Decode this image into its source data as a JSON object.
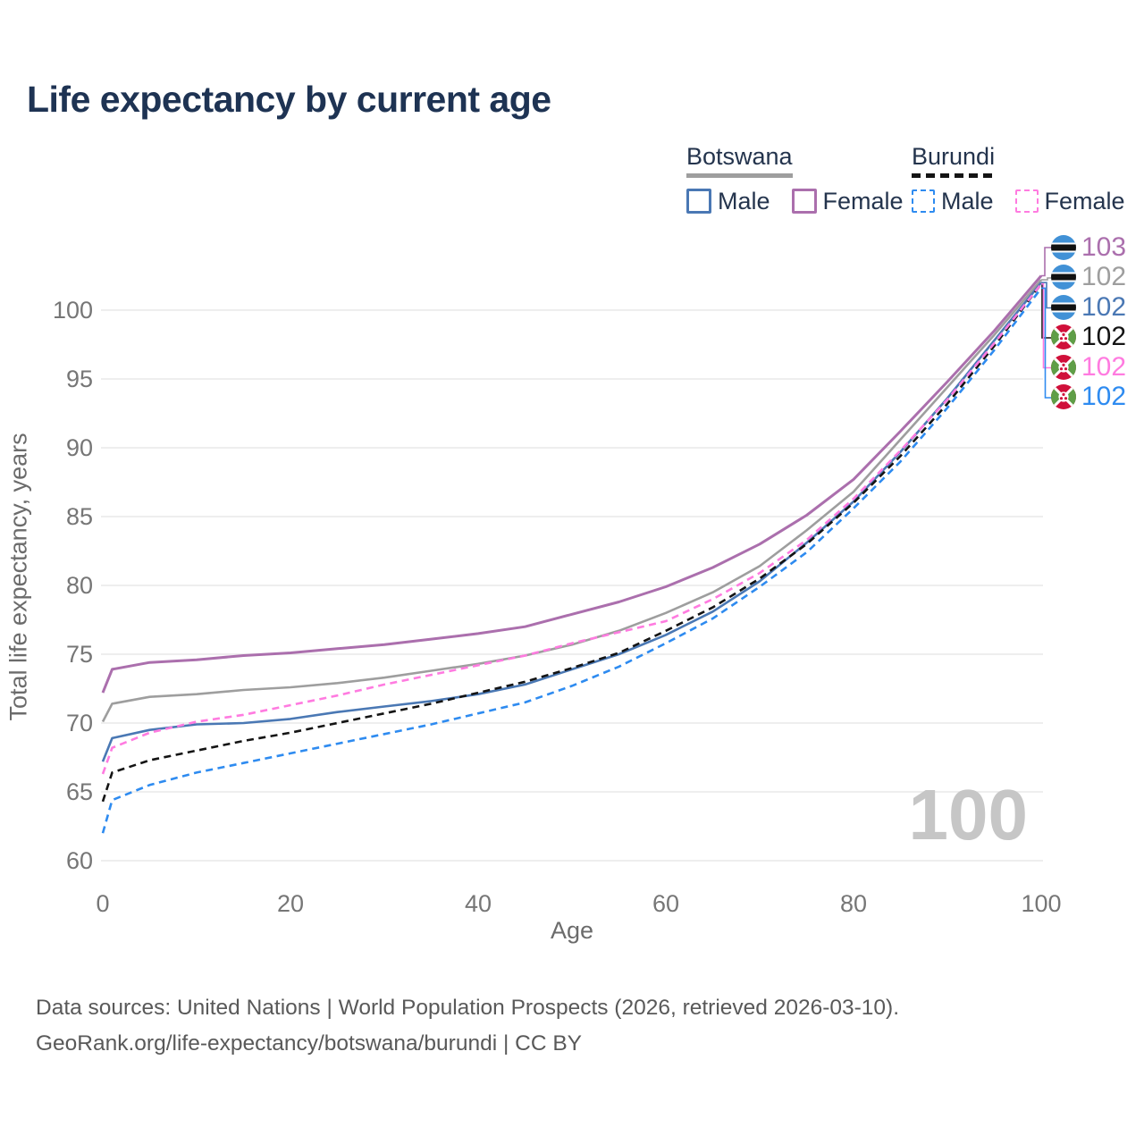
{
  "title": "Life expectancy by current age",
  "legend": {
    "groups": [
      {
        "country": "Botswana",
        "line_style": "solid",
        "underline_color": "#9e9e9e",
        "items": [
          {
            "label": "Male",
            "color": "#4a78b4",
            "dashed": false
          },
          {
            "label": "Female",
            "color": "#ab6fad",
            "dashed": false
          }
        ]
      },
      {
        "country": "Burundi",
        "line_style": "dashed",
        "underline_color": "#141414",
        "items": [
          {
            "label": "Male",
            "color": "#2e8bf0",
            "dashed": true
          },
          {
            "label": "Female",
            "color": "#ff7be0",
            "dashed": true
          }
        ]
      }
    ]
  },
  "watermark": "100",
  "footer": {
    "data_sources_line": "Data sources: United Nations | World Population Prospects (2026, retrieved 2026-03-10).",
    "attribution_line": "GeoRank.org/life-expectancy/botswana/burundi | CC BY"
  },
  "chart_data": {
    "type": "line",
    "title": "Life expectancy by current age",
    "xlabel": "Age",
    "ylabel": "Total life expectancy, years",
    "xlim": [
      0,
      100
    ],
    "ylim": [
      60,
      103.5
    ],
    "x_ticks": [
      0,
      20,
      40,
      60,
      80,
      100
    ],
    "y_ticks": [
      60,
      65,
      70,
      75,
      80,
      85,
      90,
      95,
      100
    ],
    "grid": "horizontal",
    "legend_position": "top-right",
    "x": [
      0,
      1,
      5,
      10,
      15,
      20,
      25,
      30,
      35,
      40,
      45,
      50,
      55,
      60,
      65,
      70,
      75,
      80,
      85,
      90,
      95,
      100
    ],
    "series": [
      {
        "name": "Botswana Female",
        "country": "Botswana",
        "sex": "Female",
        "line": "solid",
        "color": "#ab6fad",
        "flag": "botswana",
        "end_label": "103",
        "values": [
          72.2,
          73.9,
          74.4,
          74.6,
          74.9,
          75.1,
          75.4,
          75.7,
          76.1,
          76.5,
          77.0,
          77.9,
          78.8,
          79.9,
          81.3,
          83.0,
          85.1,
          87.7,
          91.2,
          94.8,
          98.5,
          102.5
        ]
      },
      {
        "name": "Botswana Both sexes",
        "country": "Botswana",
        "sex": "All",
        "line": "solid",
        "color": "#9e9e9e",
        "flag": "botswana",
        "end_label": "102",
        "values": [
          70.1,
          71.4,
          71.9,
          72.1,
          72.4,
          72.6,
          72.9,
          73.3,
          73.8,
          74.3,
          74.9,
          75.7,
          76.7,
          78.0,
          79.5,
          81.4,
          84.0,
          86.8,
          90.6,
          94.4,
          98.2,
          102.2
        ]
      },
      {
        "name": "Botswana Male",
        "country": "Botswana",
        "sex": "Male",
        "line": "solid",
        "color": "#4a78b4",
        "flag": "botswana",
        "end_label": "102",
        "values": [
          67.2,
          68.9,
          69.5,
          69.9,
          70.0,
          70.3,
          70.8,
          71.2,
          71.6,
          72.1,
          72.8,
          73.9,
          75.0,
          76.4,
          78.1,
          80.3,
          83.1,
          86.1,
          89.7,
          93.6,
          97.8,
          102.0
        ]
      },
      {
        "name": "Burundi Both sexes",
        "country": "Burundi",
        "sex": "All",
        "line": "dashed",
        "color": "#141414",
        "flag": "burundi",
        "end_label": "102",
        "values": [
          64.3,
          66.4,
          67.3,
          68.0,
          68.7,
          69.3,
          70.0,
          70.7,
          71.4,
          72.2,
          73.0,
          74.0,
          75.1,
          76.7,
          78.4,
          80.5,
          83.0,
          86.0,
          89.4,
          93.2,
          97.4,
          101.9
        ]
      },
      {
        "name": "Burundi Female",
        "country": "Burundi",
        "sex": "Female",
        "line": "dashed",
        "color": "#ff7be0",
        "flag": "burundi",
        "end_label": "102",
        "values": [
          66.3,
          68.2,
          69.3,
          70.1,
          70.6,
          71.3,
          72.0,
          72.8,
          73.5,
          74.2,
          74.9,
          75.8,
          76.6,
          77.4,
          79.0,
          80.9,
          83.3,
          86.3,
          89.8,
          93.5,
          97.6,
          101.9
        ]
      },
      {
        "name": "Burundi Male",
        "country": "Burundi",
        "sex": "Male",
        "line": "dashed",
        "color": "#2e8bf0",
        "flag": "burundi",
        "end_label": "102",
        "values": [
          62.0,
          64.4,
          65.5,
          66.4,
          67.1,
          67.8,
          68.5,
          69.2,
          69.9,
          70.7,
          71.5,
          72.7,
          74.1,
          75.8,
          77.6,
          79.9,
          82.4,
          85.6,
          89.0,
          92.9,
          97.1,
          101.6
        ]
      }
    ]
  }
}
